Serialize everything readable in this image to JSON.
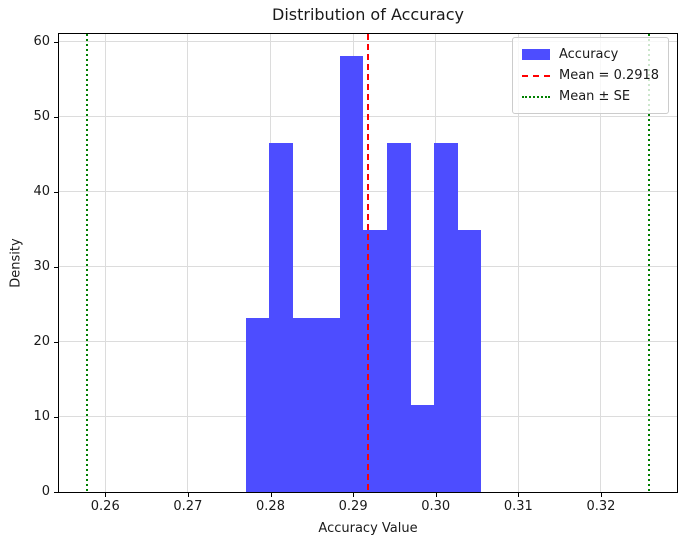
{
  "figure": {
    "background": "#ffffff"
  },
  "chart_data": {
    "type": "bar",
    "subtype": "histogram",
    "title": "Distribution of Accuracy",
    "xlabel": "Accuracy Value",
    "ylabel": "Density",
    "xlim": [
      0.2544,
      0.3292
    ],
    "ylim": [
      0,
      61
    ],
    "grid": true,
    "grid_color": "#dcdcdc",
    "x_ticks": [
      0.26,
      0.27,
      0.28,
      0.29,
      0.3,
      0.31,
      0.32
    ],
    "x_tick_labels": [
      "0.26",
      "0.27",
      "0.28",
      "0.29",
      "0.30",
      "0.31",
      "0.32"
    ],
    "y_ticks": [
      0,
      10,
      20,
      30,
      40,
      50,
      60
    ],
    "y_tick_labels": [
      "0",
      "10",
      "20",
      "30",
      "40",
      "50",
      "60"
    ],
    "bar_color": "#4d4dff",
    "bin_edges": [
      0.277,
      0.27985,
      0.2827,
      0.28555,
      0.2884,
      0.29125,
      0.2941,
      0.29695,
      0.2998,
      0.30265,
      0.3055
    ],
    "densities": [
      23.24,
      46.47,
      23.24,
      23.24,
      58.09,
      34.86,
      46.47,
      11.62,
      46.47,
      34.86
    ],
    "counts": [
      2,
      4,
      2,
      2,
      5,
      3,
      4,
      1,
      4,
      3
    ],
    "mean_line": {
      "value": 0.2918,
      "color": "#ff0000",
      "linestyle": "dashed",
      "label": "Mean = 0.2918"
    },
    "se_lines": {
      "values": [
        0.2578,
        0.3258
      ],
      "color": "#008000",
      "linestyle": "dotted",
      "label": "Mean ± SE"
    },
    "legend": {
      "position": "upper right",
      "entries": [
        {
          "swatch": "patch",
          "color": "#4d4dff",
          "label": "Accuracy"
        },
        {
          "swatch": "dashed-line",
          "color": "#ff0000",
          "label": "Mean = 0.2918"
        },
        {
          "swatch": "dotted-line",
          "color": "#008000",
          "label": "Mean ± SE"
        }
      ]
    }
  }
}
